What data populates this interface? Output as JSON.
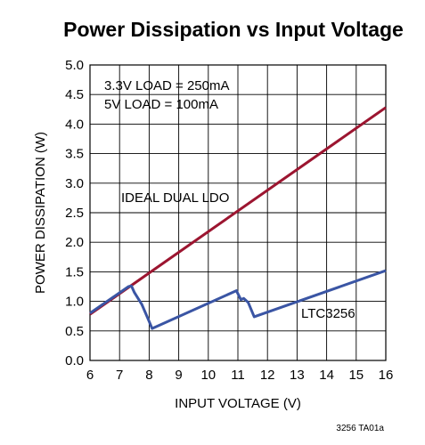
{
  "chart_data": {
    "type": "line",
    "title": "Power Dissipation vs Input Voltage",
    "xlabel": "INPUT VOLTAGE (V)",
    "ylabel": "POWER DISSIPATION (W)",
    "xlim": [
      6,
      16
    ],
    "ylim": [
      0,
      5.0
    ],
    "x_ticks": [
      "6",
      "7",
      "8",
      "9",
      "10",
      "11",
      "12",
      "13",
      "14",
      "15",
      "16"
    ],
    "y_ticks": [
      "0.0",
      "0.5",
      "1.0",
      "1.5",
      "2.0",
      "2.5",
      "3.0",
      "3.5",
      "4.0",
      "4.5",
      "5.0"
    ],
    "grid": true,
    "annotations": [
      {
        "text": "3.3V LOAD = 250mA"
      },
      {
        "text": "5V LOAD = 100mA"
      }
    ],
    "series": [
      {
        "name": "IDEAL DUAL LDO",
        "color": "#9c1530",
        "points": [
          [
            6,
            0.78
          ],
          [
            16,
            4.28
          ]
        ]
      },
      {
        "name": "LTC3256",
        "color": "#3a55a4",
        "points": [
          [
            6,
            0.8
          ],
          [
            7.3,
            1.25
          ],
          [
            7.4,
            1.26
          ],
          [
            7.5,
            1.15
          ],
          [
            7.75,
            0.95
          ],
          [
            7.95,
            0.72
          ],
          [
            8.1,
            0.54
          ],
          [
            10.95,
            1.18
          ],
          [
            11.1,
            1.03
          ],
          [
            11.2,
            1.05
          ],
          [
            11.35,
            0.98
          ],
          [
            11.55,
            0.74
          ],
          [
            16,
            1.52
          ]
        ]
      }
    ],
    "figure_id": "3256 TA01a"
  }
}
